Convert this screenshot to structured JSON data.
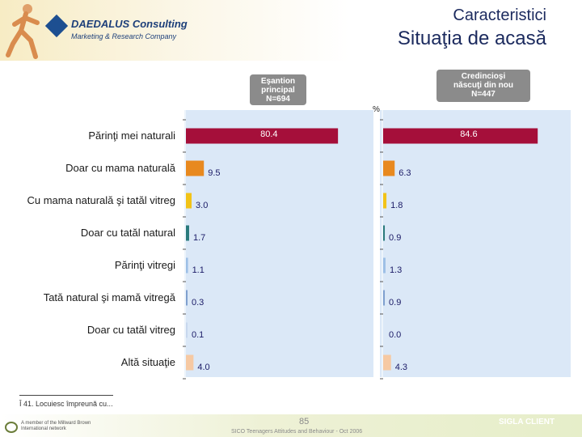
{
  "header": {
    "title_top": "Caracteristici",
    "title_main": "Situaţia de acasă",
    "logo_name": "DAEDALUS Consulting",
    "logo_sub": "Marketing & Research Company"
  },
  "boxes": {
    "left": [
      "Eşantion",
      "principal",
      "N=694"
    ],
    "right": [
      "Credincioşi",
      "născuţi din nou",
      "N=447"
    ]
  },
  "unit": "%",
  "chart_data": {
    "type": "bar",
    "orientation": "horizontal",
    "categories": [
      "Părinţi mei naturali",
      "Doar cu mama naturală",
      "Cu mama naturală şi tatăl vitreg",
      "Doar cu tatăl natural",
      "Părinţi vitregi",
      "Tată natural şi mamă vitregă",
      "Doar cu tatăl vitreg",
      "Altă situaţie"
    ],
    "series": [
      {
        "name": "Eşantion principal N=694",
        "values": [
          80.4,
          9.5,
          3.0,
          1.7,
          1.1,
          0.3,
          0.1,
          4.0
        ]
      },
      {
        "name": "Credincioşi născuţi din nou N=447",
        "values": [
          84.6,
          6.3,
          1.8,
          0.9,
          1.3,
          0.9,
          0.0,
          4.3
        ]
      }
    ],
    "value_labels": [
      [
        "80.4",
        "9.5",
        "3.0",
        "1.7",
        "1.1",
        "0.3",
        "0.1",
        "4.0"
      ],
      [
        "84.6",
        "6.3",
        "1.8",
        "0.9",
        "1.3",
        "0.9",
        "0.0",
        "4.3"
      ]
    ],
    "bar_colors": [
      "#a50f3a",
      "#e8891f",
      "#f2c318",
      "#2a7a7c",
      "#9dbfe6",
      "#7fa0cf",
      "#c7d7ee",
      "#f6c9a3"
    ],
    "xlim": [
      0,
      100
    ]
  },
  "footnote": "Î 41. Locuiesc împreună cu...",
  "footer": {
    "page": "85",
    "text": "SICO Teenagers Attitudes and Behaviour - Oct 2006",
    "network_line1": "A member of the Millward Brown",
    "network_line2": "International network",
    "sigla": "SIGLA CLIENT"
  }
}
